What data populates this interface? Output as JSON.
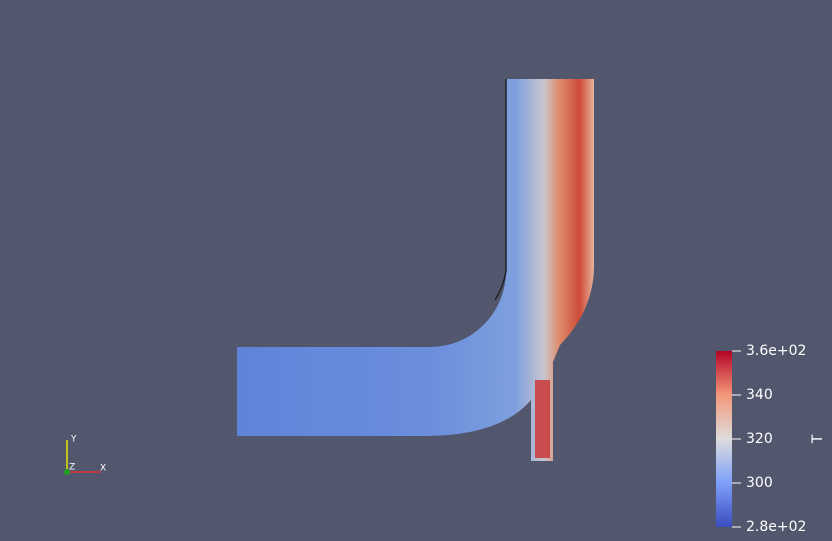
{
  "colorbar": {
    "title": "T",
    "range": [
      280,
      360
    ],
    "ticks": [
      {
        "value": 360,
        "label": "3.6e+02"
      },
      340,
      320,
      300,
      {
        "value": 280,
        "label": "2.8e+02"
      }
    ]
  },
  "orientation_axes": {
    "y": "Y",
    "z": "Z",
    "x": "X"
  }
}
